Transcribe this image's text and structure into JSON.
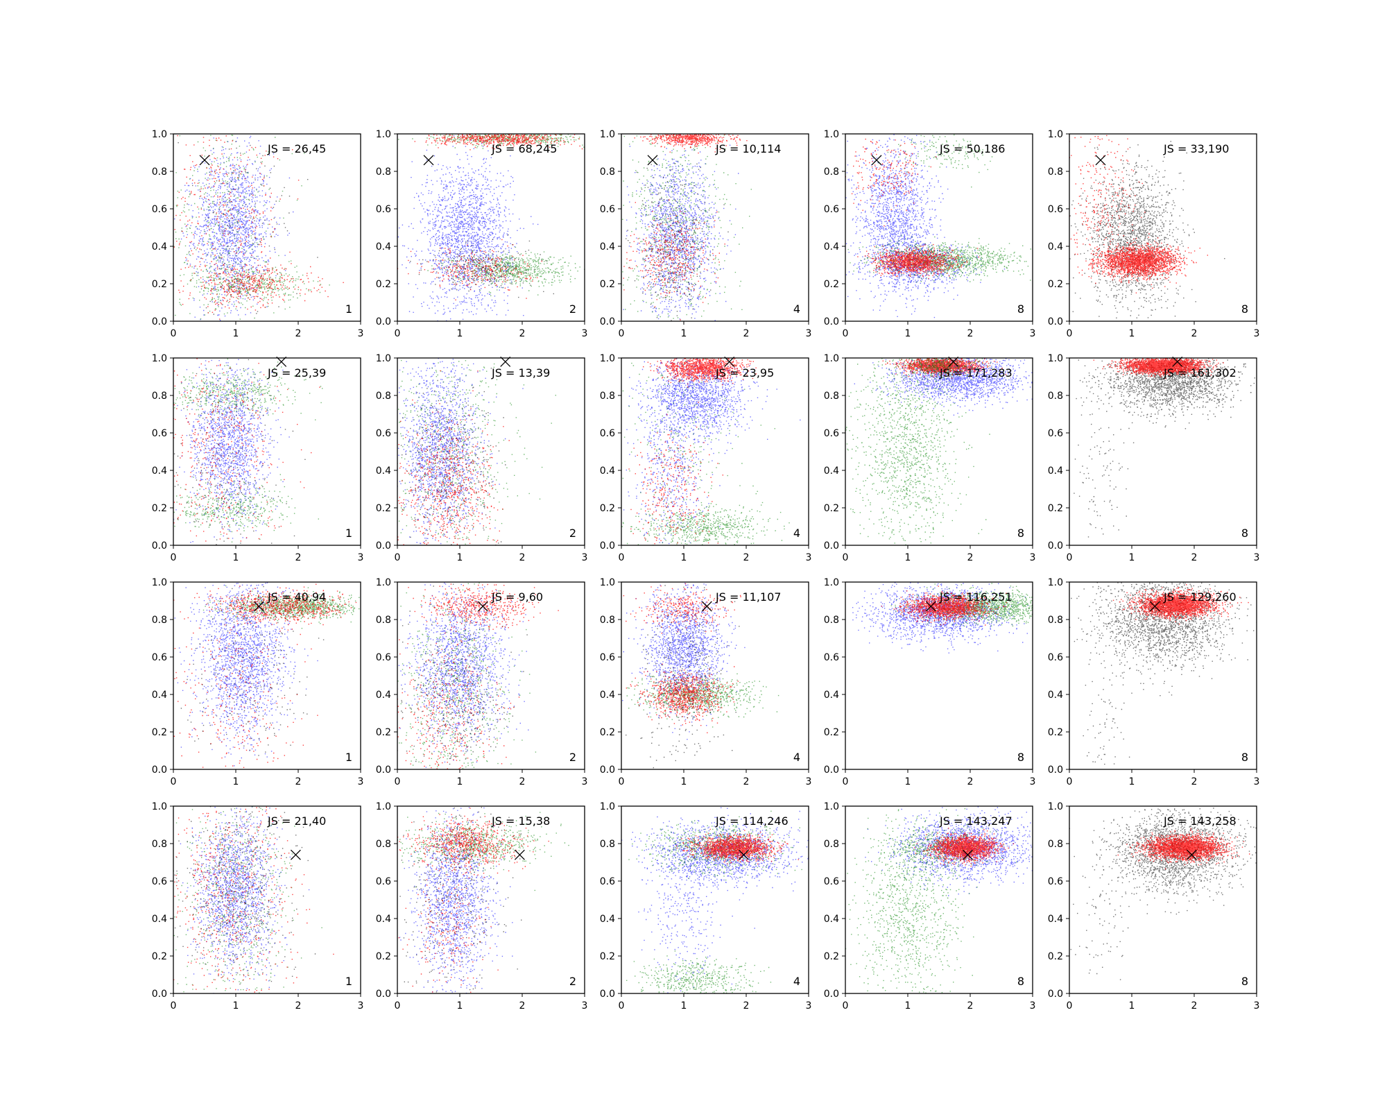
{
  "chart_data": {
    "type": "scatter",
    "grid": false,
    "layout": {
      "rows": 4,
      "cols": 5
    },
    "shared": {
      "xlim": [
        0,
        3
      ],
      "ylim": [
        0,
        1
      ],
      "xticks": [
        "0",
        "1",
        "2",
        "3"
      ],
      "yticks": [
        "0.0",
        "0.2",
        "0.4",
        "0.6",
        "0.8",
        "1.0"
      ],
      "series_colors": {
        "blue": "#0000ff",
        "green": "#008000",
        "red": "#ff0000",
        "black": "#000000"
      }
    },
    "markers": [
      {
        "row": 1,
        "x": 0.5,
        "y": 0.86
      },
      {
        "row": 2,
        "x": 1.73,
        "y": 0.98
      },
      {
        "row": 3,
        "x": 1.37,
        "y": 0.87
      },
      {
        "row": 4,
        "x": 1.96,
        "y": 0.74
      }
    ],
    "panels": [
      {
        "row": 1,
        "col": 1,
        "js": "JS = 26,45",
        "corner": "1",
        "points": [
          {
            "color": "blue",
            "n": 1500,
            "cx": 0.95,
            "cy": 0.5,
            "sx": 0.3,
            "sy": 0.2
          },
          {
            "color": "green",
            "n": 400,
            "cx": 1.2,
            "cy": 0.2,
            "sx": 0.45,
            "sy": 0.05
          },
          {
            "color": "green",
            "n": 400,
            "cx": 0.8,
            "cy": 0.55,
            "sx": 0.45,
            "sy": 0.3
          },
          {
            "color": "red",
            "n": 400,
            "cx": 1.2,
            "cy": 0.2,
            "sx": 0.5,
            "sy": 0.05
          },
          {
            "color": "red",
            "n": 400,
            "cx": 0.8,
            "cy": 0.6,
            "sx": 0.5,
            "sy": 0.3
          },
          {
            "color": "black",
            "n": 150,
            "cx": 1.0,
            "cy": 0.5,
            "sx": 0.5,
            "sy": 0.3
          }
        ]
      },
      {
        "row": 1,
        "col": 2,
        "js": "JS = 68,245",
        "corner": "2",
        "points": [
          {
            "color": "blue",
            "n": 1800,
            "cx": 1.1,
            "cy": 0.45,
            "sx": 0.35,
            "sy": 0.2
          },
          {
            "color": "green",
            "n": 700,
            "cx": 1.8,
            "cy": 0.28,
            "sx": 0.45,
            "sy": 0.04
          },
          {
            "color": "green",
            "n": 500,
            "cx": 1.8,
            "cy": 0.98,
            "sx": 0.6,
            "sy": 0.02
          },
          {
            "color": "red",
            "n": 700,
            "cx": 1.6,
            "cy": 0.98,
            "sx": 0.5,
            "sy": 0.02
          },
          {
            "color": "red",
            "n": 300,
            "cx": 1.3,
            "cy": 0.28,
            "sx": 0.4,
            "sy": 0.05
          },
          {
            "color": "black",
            "n": 200,
            "cx": 1.4,
            "cy": 0.3,
            "sx": 0.45,
            "sy": 0.06
          }
        ]
      },
      {
        "row": 1,
        "col": 3,
        "js": "JS = 10,114",
        "corner": "4",
        "points": [
          {
            "color": "blue",
            "n": 1500,
            "cx": 0.9,
            "cy": 0.45,
            "sx": 0.3,
            "sy": 0.2
          },
          {
            "color": "green",
            "n": 700,
            "cx": 0.9,
            "cy": 0.5,
            "sx": 0.4,
            "sy": 0.3
          },
          {
            "color": "red",
            "n": 600,
            "cx": 1.1,
            "cy": 0.98,
            "sx": 0.3,
            "sy": 0.02
          },
          {
            "color": "red",
            "n": 400,
            "cx": 0.8,
            "cy": 0.35,
            "sx": 0.3,
            "sy": 0.1
          },
          {
            "color": "black",
            "n": 300,
            "cx": 0.8,
            "cy": 0.4,
            "sx": 0.3,
            "sy": 0.2
          }
        ]
      },
      {
        "row": 1,
        "col": 4,
        "js": "JS = 50,186",
        "corner": "8",
        "points": [
          {
            "color": "blue",
            "n": 1500,
            "cx": 0.8,
            "cy": 0.55,
            "sx": 0.3,
            "sy": 0.2
          },
          {
            "color": "blue",
            "n": 800,
            "cx": 1.2,
            "cy": 0.3,
            "sx": 0.4,
            "sy": 0.06
          },
          {
            "color": "green",
            "n": 1200,
            "cx": 1.6,
            "cy": 0.33,
            "sx": 0.55,
            "sy": 0.04
          },
          {
            "color": "green",
            "n": 150,
            "cx": 1.6,
            "cy": 0.9,
            "sx": 0.4,
            "sy": 0.05
          },
          {
            "color": "red",
            "n": 1200,
            "cx": 1.1,
            "cy": 0.32,
            "sx": 0.3,
            "sy": 0.03
          },
          {
            "color": "red",
            "n": 200,
            "cx": 0.6,
            "cy": 0.8,
            "sx": 0.3,
            "sy": 0.1
          }
        ]
      },
      {
        "row": 1,
        "col": 5,
        "js": "JS = 33,190",
        "corner": "8",
        "points": [
          {
            "color": "black",
            "n": 1800,
            "cx": 1.0,
            "cy": 0.45,
            "sx": 0.35,
            "sy": 0.18
          },
          {
            "color": "red",
            "n": 2200,
            "cx": 1.1,
            "cy": 0.32,
            "sx": 0.3,
            "sy": 0.04
          },
          {
            "color": "red",
            "n": 300,
            "cx": 0.5,
            "cy": 0.65,
            "sx": 0.3,
            "sy": 0.2
          }
        ]
      },
      {
        "row": 2,
        "col": 1,
        "js": "JS = 25,39",
        "corner": "1",
        "points": [
          {
            "color": "blue",
            "n": 1500,
            "cx": 0.9,
            "cy": 0.55,
            "sx": 0.3,
            "sy": 0.2
          },
          {
            "color": "green",
            "n": 500,
            "cx": 0.9,
            "cy": 0.82,
            "sx": 0.5,
            "sy": 0.06
          },
          {
            "color": "green",
            "n": 400,
            "cx": 0.9,
            "cy": 0.2,
            "sx": 0.5,
            "sy": 0.06
          },
          {
            "color": "red",
            "n": 500,
            "cx": 0.7,
            "cy": 0.5,
            "sx": 0.5,
            "sy": 0.3
          },
          {
            "color": "black",
            "n": 200,
            "cx": 0.8,
            "cy": 0.4,
            "sx": 0.5,
            "sy": 0.3
          }
        ]
      },
      {
        "row": 2,
        "col": 2,
        "js": "JS = 13,39",
        "corner": "2",
        "points": [
          {
            "color": "blue",
            "n": 1600,
            "cx": 0.7,
            "cy": 0.5,
            "sx": 0.3,
            "sy": 0.22
          },
          {
            "color": "green",
            "n": 600,
            "cx": 0.9,
            "cy": 0.5,
            "sx": 0.5,
            "sy": 0.3
          },
          {
            "color": "red",
            "n": 700,
            "cx": 0.8,
            "cy": 0.3,
            "sx": 0.4,
            "sy": 0.2
          },
          {
            "color": "black",
            "n": 300,
            "cx": 0.8,
            "cy": 0.4,
            "sx": 0.4,
            "sy": 0.25
          }
        ]
      },
      {
        "row": 2,
        "col": 3,
        "js": "JS = 23,95",
        "corner": "4",
        "points": [
          {
            "color": "blue",
            "n": 1400,
            "cx": 1.2,
            "cy": 0.8,
            "sx": 0.4,
            "sy": 0.1
          },
          {
            "color": "blue",
            "n": 500,
            "cx": 0.8,
            "cy": 0.4,
            "sx": 0.3,
            "sy": 0.2
          },
          {
            "color": "green",
            "n": 600,
            "cx": 1.3,
            "cy": 0.1,
            "sx": 0.5,
            "sy": 0.05
          },
          {
            "color": "green",
            "n": 300,
            "cx": 1.0,
            "cy": 0.6,
            "sx": 0.5,
            "sy": 0.3
          },
          {
            "color": "red",
            "n": 1200,
            "cx": 1.3,
            "cy": 0.95,
            "sx": 0.3,
            "sy": 0.03
          },
          {
            "color": "red",
            "n": 300,
            "cx": 0.8,
            "cy": 0.3,
            "sx": 0.3,
            "sy": 0.15
          }
        ]
      },
      {
        "row": 2,
        "col": 4,
        "js": "JS = 171,283",
        "corner": "8",
        "points": [
          {
            "color": "blue",
            "n": 1800,
            "cx": 1.8,
            "cy": 0.9,
            "sx": 0.5,
            "sy": 0.06
          },
          {
            "color": "green",
            "n": 1200,
            "cx": 1.0,
            "cy": 0.5,
            "sx": 0.4,
            "sy": 0.25
          },
          {
            "color": "red",
            "n": 1500,
            "cx": 1.5,
            "cy": 0.96,
            "sx": 0.3,
            "sy": 0.02
          },
          {
            "color": "green",
            "n": 400,
            "cx": 1.5,
            "cy": 0.96,
            "sx": 0.3,
            "sy": 0.03
          }
        ]
      },
      {
        "row": 2,
        "col": 5,
        "js": "JS = 161,302",
        "corner": "8",
        "points": [
          {
            "color": "black",
            "n": 2000,
            "cx": 1.6,
            "cy": 0.88,
            "sx": 0.5,
            "sy": 0.08
          },
          {
            "color": "black",
            "n": 100,
            "cx": 0.5,
            "cy": 0.4,
            "sx": 0.2,
            "sy": 0.2
          },
          {
            "color": "red",
            "n": 2500,
            "cx": 1.5,
            "cy": 0.96,
            "sx": 0.3,
            "sy": 0.02
          }
        ]
      },
      {
        "row": 3,
        "col": 1,
        "js": "JS = 40,94",
        "corner": "1",
        "points": [
          {
            "color": "blue",
            "n": 1800,
            "cx": 1.1,
            "cy": 0.6,
            "sx": 0.35,
            "sy": 0.2
          },
          {
            "color": "green",
            "n": 1000,
            "cx": 1.9,
            "cy": 0.87,
            "sx": 0.5,
            "sy": 0.03
          },
          {
            "color": "red",
            "n": 700,
            "cx": 1.7,
            "cy": 0.87,
            "sx": 0.5,
            "sy": 0.04
          },
          {
            "color": "red",
            "n": 300,
            "cx": 1.0,
            "cy": 0.4,
            "sx": 0.5,
            "sy": 0.25
          },
          {
            "color": "black",
            "n": 200,
            "cx": 1.2,
            "cy": 0.5,
            "sx": 0.5,
            "sy": 0.25
          }
        ]
      },
      {
        "row": 3,
        "col": 2,
        "js": "JS = 9,60",
        "corner": "2",
        "points": [
          {
            "color": "blue",
            "n": 1600,
            "cx": 1.0,
            "cy": 0.55,
            "sx": 0.35,
            "sy": 0.2
          },
          {
            "color": "green",
            "n": 700,
            "cx": 0.9,
            "cy": 0.4,
            "sx": 0.45,
            "sy": 0.3
          },
          {
            "color": "red",
            "n": 500,
            "cx": 1.3,
            "cy": 0.87,
            "sx": 0.4,
            "sy": 0.05
          },
          {
            "color": "red",
            "n": 400,
            "cx": 0.8,
            "cy": 0.3,
            "sx": 0.4,
            "sy": 0.2
          },
          {
            "color": "black",
            "n": 300,
            "cx": 0.9,
            "cy": 0.4,
            "sx": 0.4,
            "sy": 0.25
          }
        ]
      },
      {
        "row": 3,
        "col": 3,
        "js": "JS = 11,107",
        "corner": "4",
        "points": [
          {
            "color": "blue",
            "n": 1600,
            "cx": 1.0,
            "cy": 0.65,
            "sx": 0.3,
            "sy": 0.15
          },
          {
            "color": "green",
            "n": 800,
            "cx": 1.2,
            "cy": 0.4,
            "sx": 0.45,
            "sy": 0.05
          },
          {
            "color": "red",
            "n": 800,
            "cx": 1.0,
            "cy": 0.4,
            "sx": 0.3,
            "sy": 0.06
          },
          {
            "color": "red",
            "n": 300,
            "cx": 1.0,
            "cy": 0.86,
            "sx": 0.35,
            "sy": 0.05
          },
          {
            "color": "black",
            "n": 300,
            "cx": 1.0,
            "cy": 0.5,
            "sx": 0.35,
            "sy": 0.25
          }
        ]
      },
      {
        "row": 3,
        "col": 4,
        "js": "JS = 116,251",
        "corner": "8",
        "points": [
          {
            "color": "blue",
            "n": 1800,
            "cx": 1.5,
            "cy": 0.84,
            "sx": 0.5,
            "sy": 0.07
          },
          {
            "color": "green",
            "n": 1300,
            "cx": 2.3,
            "cy": 0.87,
            "sx": 0.5,
            "sy": 0.04
          },
          {
            "color": "red",
            "n": 1500,
            "cx": 1.6,
            "cy": 0.87,
            "sx": 0.3,
            "sy": 0.03
          }
        ]
      },
      {
        "row": 3,
        "col": 5,
        "js": "JS = 129,260",
        "corner": "8",
        "points": [
          {
            "color": "black",
            "n": 2000,
            "cx": 1.5,
            "cy": 0.8,
            "sx": 0.5,
            "sy": 0.12
          },
          {
            "color": "black",
            "n": 80,
            "cx": 0.6,
            "cy": 0.3,
            "sx": 0.2,
            "sy": 0.2
          },
          {
            "color": "red",
            "n": 2500,
            "cx": 1.7,
            "cy": 0.88,
            "sx": 0.3,
            "sy": 0.03
          }
        ]
      },
      {
        "row": 4,
        "col": 1,
        "js": "JS = 21,40",
        "corner": "1",
        "points": [
          {
            "color": "blue",
            "n": 1600,
            "cx": 1.0,
            "cy": 0.55,
            "sx": 0.3,
            "sy": 0.2
          },
          {
            "color": "green",
            "n": 600,
            "cx": 1.0,
            "cy": 0.5,
            "sx": 0.45,
            "sy": 0.3
          },
          {
            "color": "red",
            "n": 600,
            "cx": 0.9,
            "cy": 0.55,
            "sx": 0.5,
            "sy": 0.3
          },
          {
            "color": "black",
            "n": 400,
            "cx": 1.0,
            "cy": 0.55,
            "sx": 0.45,
            "sy": 0.25
          }
        ]
      },
      {
        "row": 4,
        "col": 2,
        "js": "JS = 15,38",
        "corner": "2",
        "points": [
          {
            "color": "blue",
            "n": 1500,
            "cx": 0.9,
            "cy": 0.5,
            "sx": 0.3,
            "sy": 0.22
          },
          {
            "color": "green",
            "n": 700,
            "cx": 1.2,
            "cy": 0.8,
            "sx": 0.5,
            "sy": 0.06
          },
          {
            "color": "red",
            "n": 700,
            "cx": 1.1,
            "cy": 0.8,
            "sx": 0.4,
            "sy": 0.06
          },
          {
            "color": "red",
            "n": 200,
            "cx": 0.8,
            "cy": 0.35,
            "sx": 0.3,
            "sy": 0.15
          },
          {
            "color": "black",
            "n": 300,
            "cx": 0.9,
            "cy": 0.5,
            "sx": 0.4,
            "sy": 0.25
          }
        ]
      },
      {
        "row": 4,
        "col": 3,
        "js": "JS = 114,246",
        "corner": "4",
        "points": [
          {
            "color": "blue",
            "n": 1500,
            "cx": 1.6,
            "cy": 0.75,
            "sx": 0.55,
            "sy": 0.08
          },
          {
            "color": "blue",
            "n": 300,
            "cx": 1.0,
            "cy": 0.45,
            "sx": 0.3,
            "sy": 0.2
          },
          {
            "color": "green",
            "n": 800,
            "cx": 1.5,
            "cy": 0.78,
            "sx": 0.5,
            "sy": 0.06
          },
          {
            "color": "green",
            "n": 500,
            "cx": 1.2,
            "cy": 0.08,
            "sx": 0.45,
            "sy": 0.05
          },
          {
            "color": "red",
            "n": 1500,
            "cx": 1.8,
            "cy": 0.78,
            "sx": 0.3,
            "sy": 0.03
          }
        ]
      },
      {
        "row": 4,
        "col": 4,
        "js": "JS = 143,247",
        "corner": "8",
        "points": [
          {
            "color": "blue",
            "n": 1800,
            "cx": 1.9,
            "cy": 0.78,
            "sx": 0.5,
            "sy": 0.08
          },
          {
            "color": "green",
            "n": 1000,
            "cx": 1.0,
            "cy": 0.45,
            "sx": 0.4,
            "sy": 0.25
          },
          {
            "color": "green",
            "n": 500,
            "cx": 1.5,
            "cy": 0.78,
            "sx": 0.4,
            "sy": 0.05
          },
          {
            "color": "red",
            "n": 1700,
            "cx": 1.9,
            "cy": 0.78,
            "sx": 0.25,
            "sy": 0.03
          }
        ]
      },
      {
        "row": 4,
        "col": 5,
        "js": "JS = 143,258",
        "corner": "8",
        "points": [
          {
            "color": "black",
            "n": 2000,
            "cx": 1.7,
            "cy": 0.76,
            "sx": 0.5,
            "sy": 0.1
          },
          {
            "color": "black",
            "n": 80,
            "cx": 0.5,
            "cy": 0.4,
            "sx": 0.2,
            "sy": 0.2
          },
          {
            "color": "red",
            "n": 2500,
            "cx": 1.85,
            "cy": 0.78,
            "sx": 0.3,
            "sy": 0.03
          }
        ]
      }
    ]
  }
}
